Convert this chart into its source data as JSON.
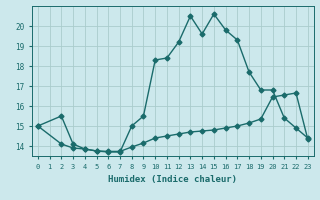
{
  "xlabel": "Humidex (Indice chaleur)",
  "background_color": "#cce8ec",
  "grid_color": "#aacccc",
  "line_color": "#1a6b6b",
  "xlim": [
    -0.5,
    23.5
  ],
  "ylim": [
    13.5,
    21.0
  ],
  "xtick_labels": [
    "0",
    "1",
    "2",
    "3",
    "4",
    "5",
    "6",
    "7",
    "8",
    "9",
    "10",
    "11",
    "12",
    "13",
    "14",
    "15",
    "16",
    "17",
    "18",
    "19",
    "20",
    "21",
    "22",
    "23"
  ],
  "xtick_vals": [
    0,
    1,
    2,
    3,
    4,
    5,
    6,
    7,
    8,
    9,
    10,
    11,
    12,
    13,
    14,
    15,
    16,
    17,
    18,
    19,
    20,
    21,
    22,
    23
  ],
  "ytick_vals": [
    14,
    15,
    16,
    17,
    18,
    19,
    20
  ],
  "line1_x": [
    0,
    2,
    3,
    4,
    5,
    6,
    7,
    8,
    9,
    10,
    11,
    12,
    13,
    14,
    15,
    16,
    17,
    18,
    19,
    20,
    21,
    22,
    23
  ],
  "line1_y": [
    15.0,
    15.5,
    14.1,
    13.85,
    13.75,
    13.7,
    13.7,
    15.0,
    15.5,
    18.3,
    18.4,
    19.2,
    20.5,
    19.6,
    20.6,
    19.8,
    19.3,
    17.7,
    16.8,
    16.8,
    15.4,
    14.9,
    14.4
  ],
  "line2_x": [
    0,
    2,
    3,
    4,
    5,
    6,
    7,
    8,
    9,
    10,
    11,
    12,
    13,
    14,
    15,
    16,
    17,
    18,
    19,
    20,
    21,
    22,
    23
  ],
  "line2_y": [
    15.0,
    14.1,
    13.9,
    13.85,
    13.75,
    13.73,
    13.73,
    13.95,
    14.15,
    14.4,
    14.5,
    14.6,
    14.7,
    14.75,
    14.8,
    14.9,
    15.0,
    15.15,
    15.35,
    16.45,
    16.55,
    16.65,
    14.35
  ],
  "marker": "D",
  "markersize": 2.5,
  "linewidth": 1.0,
  "tick_fontsize": 5.0,
  "xlabel_fontsize": 6.5
}
